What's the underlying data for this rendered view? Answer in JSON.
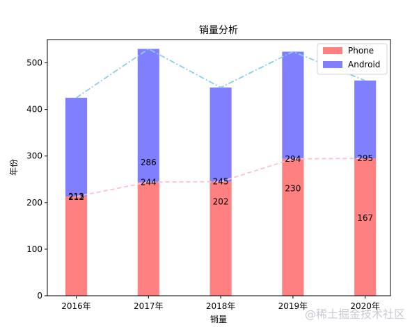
{
  "chart_data": {
    "type": "bar",
    "title": "销量分析",
    "xlabel": "销量",
    "ylabel": "年份",
    "categories": [
      "2016年",
      "2017年",
      "2018年",
      "2019年",
      "2020年"
    ],
    "ylim": [
      0,
      550
    ],
    "yticks": [
      0,
      100,
      200,
      300,
      400,
      500
    ],
    "stacked": true,
    "legend_position": "top-right",
    "series": [
      {
        "name": "Phone",
        "values": [
          213,
          244,
          245,
          294,
          295
        ],
        "color": "#ff8080"
      },
      {
        "name": "Android",
        "values": [
          212,
          286,
          202,
          230,
          167
        ],
        "color": "#8080ff"
      }
    ],
    "lines": [
      {
        "values": [
          213,
          244,
          245,
          294,
          295
        ],
        "color": "#ffc0cb",
        "style": "dashed"
      },
      {
        "values": [
          425,
          530,
          447,
          524,
          462
        ],
        "color": "#87ceeb",
        "style": "dashdot"
      }
    ],
    "bar_labels": [
      {
        "series": "Phone",
        "values": [
          213,
          244,
          245,
          294,
          295
        ],
        "label_at": [
          213,
          244,
          245,
          294,
          295
        ]
      },
      {
        "series": "Android",
        "values": [
          212,
          286,
          202,
          230,
          167
        ],
        "label_at": [
          212,
          286,
          202,
          230,
          167
        ]
      }
    ]
  },
  "watermark": "@稀土掘金技术社区"
}
